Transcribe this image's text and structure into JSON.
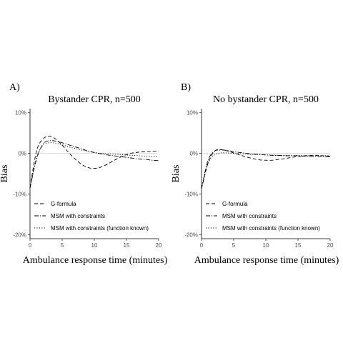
{
  "chart_data": [
    {
      "type": "line",
      "panel_label": "A)",
      "title": "Bystander CPR, n=500",
      "xlabel": "Ambulance response time (minutes)",
      "ylabel": "Bias",
      "xlim": [
        0,
        20
      ],
      "ylim": [
        -21,
        11
      ],
      "xticks": [
        0,
        5,
        10,
        15,
        20
      ],
      "xtick_labels": [
        "0",
        "5",
        "10",
        "15",
        "20"
      ],
      "yticks": [
        -20,
        -10,
        0,
        10
      ],
      "ytick_labels": [
        "-20%",
        "-10%",
        "0%",
        "10%"
      ],
      "grid": false,
      "reference_line": 0,
      "legend_position": "bottom-left inside",
      "x": [
        0,
        1,
        2,
        3,
        4,
        5,
        6,
        7,
        8,
        9,
        10,
        11,
        12,
        13,
        14,
        15,
        16,
        17,
        18,
        19,
        20
      ],
      "series": [
        {
          "name": "G-formula",
          "line_style": "dashed",
          "values": [
            -8.5,
            0.5,
            3.5,
            4.2,
            3.5,
            2.0,
            0.2,
            -1.4,
            -2.7,
            -3.5,
            -3.7,
            -3.4,
            -2.7,
            -1.8,
            -1.0,
            -0.3,
            0.1,
            0.3,
            0.4,
            0.5,
            0.5
          ]
        },
        {
          "name": "MSM with constraints",
          "line_style": "dotdash",
          "values": [
            -8.5,
            -1.5,
            2.2,
            3.1,
            3.0,
            2.6,
            2.1,
            1.6,
            1.1,
            0.6,
            0.2,
            -0.1,
            -0.4,
            -0.6,
            -0.8,
            -1.0,
            -1.2,
            -1.4,
            -1.5,
            -1.7,
            -1.8
          ]
        },
        {
          "name": "MSM with constraints (function known)",
          "line_style": "dotted",
          "values": [
            -8.5,
            -1.0,
            2.0,
            2.6,
            2.5,
            2.1,
            1.6,
            1.2,
            0.8,
            0.5,
            0.2,
            0.0,
            -0.1,
            -0.2,
            -0.3,
            -0.4,
            -0.5,
            -0.6,
            -0.7,
            -0.8,
            -0.8
          ]
        }
      ]
    },
    {
      "type": "line",
      "panel_label": "B)",
      "title": "No bystander CPR, n=500",
      "xlabel": "Ambulance response time (minutes)",
      "ylabel": "Bias",
      "xlim": [
        0,
        20
      ],
      "ylim": [
        -21,
        11
      ],
      "xticks": [
        0,
        5,
        10,
        15,
        20
      ],
      "xtick_labels": [
        "0",
        "5",
        "10",
        "15",
        "20"
      ],
      "yticks": [
        -20,
        -10,
        0,
        10
      ],
      "ytick_labels": [
        "-20%",
        "-10%",
        "0%",
        "10%"
      ],
      "grid": false,
      "reference_line": 0,
      "legend_position": "bottom-left inside",
      "x": [
        0,
        1,
        2,
        3,
        4,
        5,
        6,
        7,
        8,
        9,
        10,
        11,
        12,
        13,
        14,
        15,
        16,
        17,
        18,
        19,
        20
      ],
      "series": [
        {
          "name": "G-formula",
          "line_style": "dashed",
          "values": [
            -8.7,
            -2.5,
            0.5,
            0.9,
            0.6,
            0.1,
            -0.4,
            -0.9,
            -1.3,
            -1.6,
            -1.7,
            -1.7,
            -1.5,
            -1.3,
            -1.0,
            -0.8,
            -0.6,
            -0.5,
            -0.5,
            -0.6,
            -0.7
          ]
        },
        {
          "name": "MSM with constraints",
          "line_style": "dotdash",
          "values": [
            -8.7,
            -1.8,
            0.5,
            0.8,
            0.7,
            0.4,
            0.2,
            0.0,
            -0.2,
            -0.3,
            -0.4,
            -0.5,
            -0.5,
            -0.6,
            -0.6,
            -0.6,
            -0.7,
            -0.7,
            -0.7,
            -0.8,
            -0.8
          ]
        },
        {
          "name": "MSM with constraints (function known)",
          "line_style": "dotted",
          "values": [
            -8.7,
            -2.5,
            -0.4,
            0.1,
            0.1,
            0.0,
            -0.1,
            -0.2,
            -0.3,
            -0.3,
            -0.4,
            -0.4,
            -0.5,
            -0.5,
            -0.5,
            -0.5,
            -0.6,
            -0.6,
            -0.6,
            -0.6,
            -0.6
          ]
        }
      ]
    }
  ]
}
